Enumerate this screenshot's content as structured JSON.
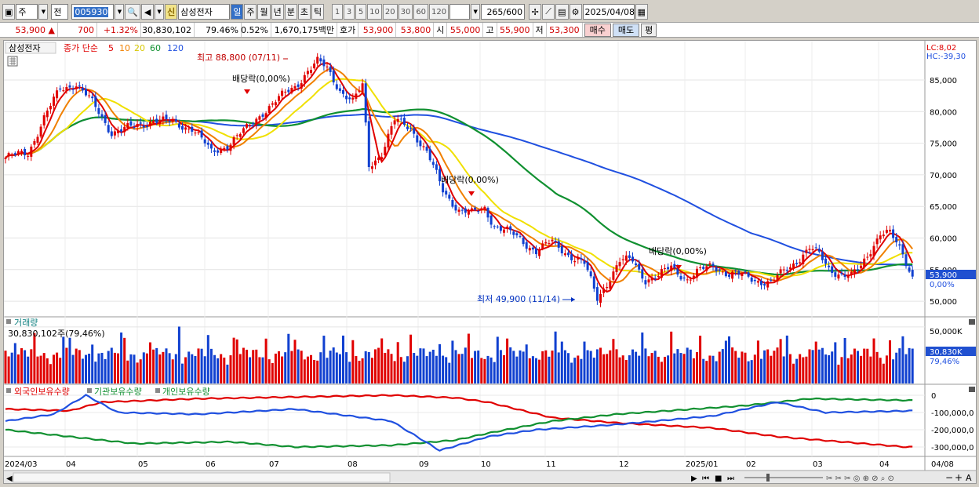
{
  "toolbar": {
    "period_day": "주",
    "period_alt": "전",
    "code": "005930",
    "stock_name": "삼성전자",
    "credit_badge": "신",
    "period_buttons": [
      "일",
      "주",
      "월",
      "년",
      "분",
      "초",
      "틱"
    ],
    "interval_buttons": [
      "1",
      "3",
      "5",
      "10",
      "20",
      "30",
      "60",
      "120"
    ],
    "count": "265/600",
    "date": "2025/04/08"
  },
  "quote": {
    "price": "53,900",
    "change": "700",
    "change_pct": "+1.32%",
    "volume": "30,830,102",
    "vol_ratio": "79.46%",
    "turnover": "0.52%",
    "amount": "1,670,175백만",
    "hoga_label": "호가",
    "ask": "53,900",
    "bid": "53,800",
    "open_label": "시",
    "open": "55,000",
    "high_label": "고",
    "high": "55,900",
    "low_label": "저",
    "low": "53,300",
    "buy_label": "매수",
    "sell_label": "매도",
    "eval_label": "평"
  },
  "price_panel": {
    "legend_name": "삼성전자",
    "legend_ma": "종가 단순",
    "ma_periods": [
      "5",
      "10",
      "20",
      "60",
      "120"
    ],
    "lc": "LC:8,02",
    "hc": "HC:-39,30",
    "high_note": "최고 88,800 (07/11)",
    "low_note": "최저 49,900 (11/14)",
    "dividend_label": "배당락(0,00%)",
    "current_price_tag": "53,900",
    "current_pct_tag": "0,00%"
  },
  "volume_panel": {
    "title": "거래량",
    "current": "30,830,102주(79,46%)",
    "axis_label": "50,000K",
    "tag": "30,830K",
    "tag_pct": "79,46%"
  },
  "holders_panel": {
    "legend": [
      "외국인보유수량",
      "기관보유수량",
      "개인보유수량"
    ]
  },
  "x_axis": {
    "labels": [
      "2024/03",
      "04",
      "05",
      "06",
      "07",
      "08",
      "09",
      "10",
      "11",
      "12",
      "2025/01",
      "02",
      "03",
      "04",
      "04/08"
    ]
  },
  "colors": {
    "ma5": "#e00000",
    "ma10": "#f08000",
    "ma20": "#f0e000",
    "ma60": "#109030",
    "ma120": "#2050e0",
    "foreign": "#2050e0",
    "institution": "#109030",
    "individual": "#e00000",
    "up": "#e00000",
    "down": "#1040d0"
  },
  "chart_data": {
    "type": "candlestick",
    "price_axis": {
      "ticks": [
        85000,
        80000,
        75000,
        70000,
        65000,
        60000,
        55000,
        50000
      ],
      "range": [
        48000,
        88800
      ]
    },
    "volume_axis": {
      "ticks": [
        "50,000K"
      ],
      "max_k": 52000,
      "current_k": 30830
    },
    "holders_axis": {
      "ticks": [
        "0",
        "-100,000,0",
        "-200,000,0",
        "-300,000,0"
      ],
      "range": [
        -350000,
        0
      ]
    },
    "price_series": {
      "name": "삼성전자",
      "key_points": [
        [
          0,
          72700
        ],
        [
          3,
          73000
        ],
        [
          7,
          73500
        ],
        [
          12,
          79000
        ],
        [
          17,
          83500
        ],
        [
          22,
          84500
        ],
        [
          26,
          82000
        ],
        [
          33,
          76800
        ],
        [
          40,
          77500
        ],
        [
          46,
          78800
        ],
        [
          53,
          78000
        ],
        [
          58,
          77500
        ],
        [
          64,
          73500
        ],
        [
          69,
          74800
        ],
        [
          75,
          77200
        ],
        [
          80,
          80000
        ],
        [
          85,
          82000
        ],
        [
          90,
          84000
        ],
        [
          94,
          86500
        ],
        [
          97,
          87800
        ],
        [
          100,
          86800
        ],
        [
          104,
          83500
        ],
        [
          108,
          81500
        ],
        [
          111,
          84000
        ],
        [
          113,
          71500
        ],
        [
          117,
          73500
        ],
        [
          121,
          78500
        ],
        [
          126,
          77500
        ],
        [
          131,
          73500
        ],
        [
          136,
          67500
        ],
        [
          141,
          64500
        ],
        [
          145,
          63800
        ],
        [
          149,
          64800
        ],
        [
          152,
          62000
        ],
        [
          156,
          61000
        ],
        [
          160,
          59800
        ],
        [
          165,
          58000
        ],
        [
          170,
          59300
        ],
        [
          175,
          57500
        ],
        [
          180,
          55800
        ],
        [
          184,
          50500
        ],
        [
          188,
          53800
        ],
        [
          191,
          56200
        ],
        [
          195,
          56500
        ],
        [
          199,
          53500
        ],
        [
          203,
          53800
        ],
        [
          207,
          55500
        ],
        [
          212,
          53500
        ],
        [
          216,
          54700
        ],
        [
          220,
          55800
        ],
        [
          225,
          54200
        ],
        [
          230,
          54000
        ],
        [
          235,
          53200
        ],
        [
          238,
          52800
        ],
        [
          242,
          54700
        ],
        [
          246,
          56500
        ],
        [
          250,
          58300
        ],
        [
          253,
          57300
        ],
        [
          256,
          55300
        ],
        [
          260,
          54200
        ],
        [
          263,
          53800
        ],
        [
          266,
          55500
        ],
        [
          269,
          58300
        ],
        [
          272,
          60800
        ],
        [
          275,
          60600
        ],
        [
          279,
          57500
        ],
        [
          282,
          53900
        ]
      ]
    },
    "volume_series": {
      "unit": "K",
      "current": 30830
    },
    "holders_series": [
      {
        "name": "외국인보유수량"
      },
      {
        "name": "기관보유수량"
      },
      {
        "name": "개인보유수량"
      }
    ]
  }
}
